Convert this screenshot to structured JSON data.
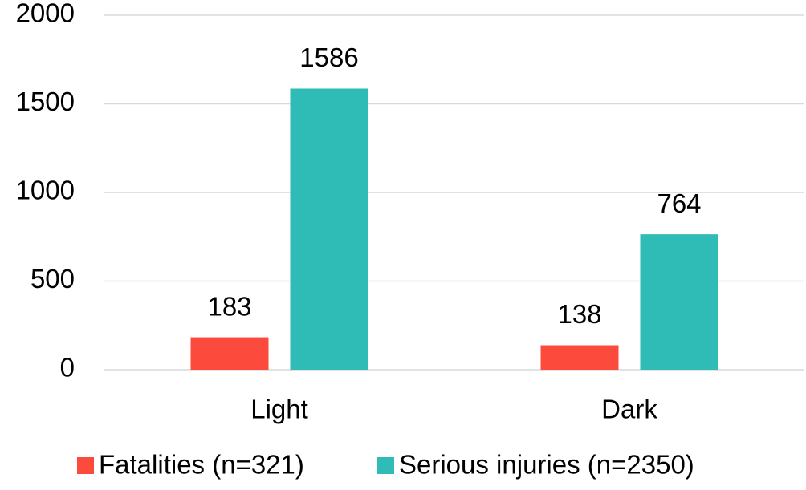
{
  "chart_data": {
    "type": "bar",
    "categories": [
      "Light",
      "Dark"
    ],
    "series": [
      {
        "name": "Fatalities (n=321)",
        "color": "#fc4b3c",
        "values": [
          183,
          138
        ]
      },
      {
        "name": "Serious injuries (n=2350)",
        "color": "#2fbcb6",
        "values": [
          1586,
          764
        ]
      }
    ],
    "ylim": [
      0,
      2000
    ],
    "yticks": [
      0,
      500,
      1000,
      1500,
      2000
    ],
    "grid": true,
    "legend": "bottom",
    "data_labels": true
  }
}
